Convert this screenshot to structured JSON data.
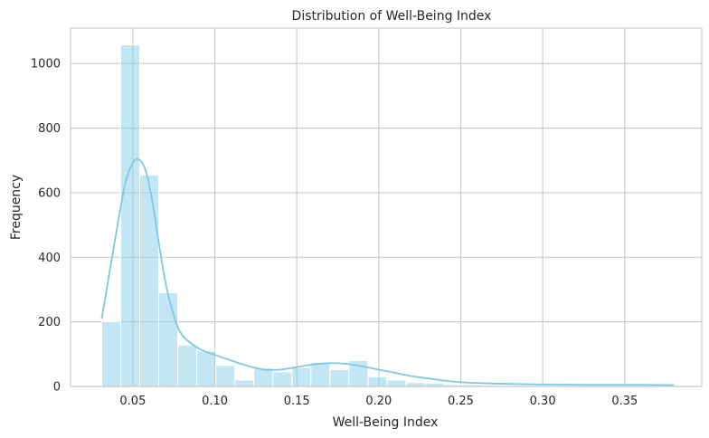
{
  "chart_data": {
    "type": "histogram",
    "title": "Distribution of Well-Being Index",
    "xlabel": "Well-Being Index",
    "ylabel": "Frequency",
    "xlim": [
      0.012,
      0.397
    ],
    "ylim": [
      0,
      1110
    ],
    "x_ticks": [
      0.05,
      0.1,
      0.15,
      0.2,
      0.25,
      0.3,
      0.35
    ],
    "x_tick_labels": [
      "0.05",
      "0.10",
      "0.15",
      "0.20",
      "0.25",
      "0.30",
      "0.35"
    ],
    "y_ticks": [
      0,
      200,
      400,
      600,
      800,
      1000
    ],
    "y_tick_labels": [
      "0",
      "200",
      "400",
      "600",
      "800",
      "1000"
    ],
    "grid": true,
    "bins": {
      "start": 0.031,
      "width": 0.0116,
      "counts": [
        200,
        1058,
        655,
        290,
        128,
        110,
        65,
        20,
        57,
        45,
        58,
        75,
        52,
        80,
        30,
        20,
        12,
        10,
        5,
        5,
        3,
        3,
        2,
        2,
        2,
        1,
        1,
        1,
        1,
        1
      ]
    },
    "kde": {
      "x": [
        0.031,
        0.038,
        0.045,
        0.05,
        0.054,
        0.058,
        0.062,
        0.066,
        0.07,
        0.075,
        0.08,
        0.09,
        0.1,
        0.11,
        0.12,
        0.13,
        0.14,
        0.15,
        0.16,
        0.17,
        0.18,
        0.19,
        0.2,
        0.21,
        0.22,
        0.23,
        0.24,
        0.25,
        0.27,
        0.3,
        0.33,
        0.36,
        0.38
      ],
      "y": [
        210,
        420,
        620,
        692,
        702,
        665,
        570,
        440,
        320,
        220,
        160,
        118,
        98,
        80,
        64,
        52,
        52,
        60,
        68,
        72,
        70,
        62,
        52,
        42,
        32,
        25,
        18,
        13,
        9,
        6,
        5,
        5,
        4
      ]
    },
    "colors": {
      "bar_fill": "#87ceeb",
      "bar_edge": "#ffffff",
      "kde_line": "#7ec8e3",
      "grid": "#cccccc",
      "spine": "#cccccc",
      "text": "#262626"
    }
  }
}
